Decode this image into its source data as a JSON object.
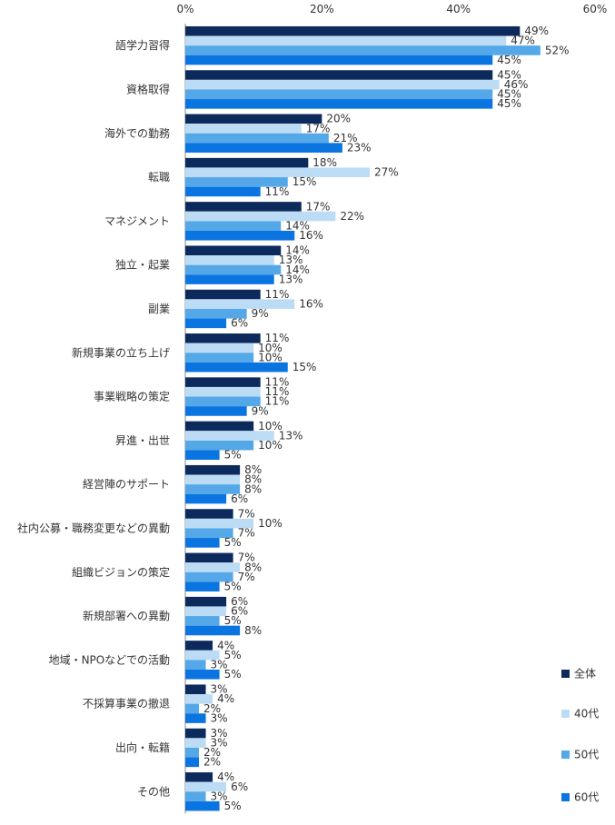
{
  "chart_data": {
    "type": "bar",
    "orientation": "horizontal",
    "xlim": [
      0,
      60
    ],
    "xticks": [
      "0%",
      "20%",
      "40%",
      "60%"
    ],
    "categories": [
      "語学力習得",
      "資格取得",
      "海外での勤務",
      "転職",
      "マネジメント",
      "独立・起業",
      "副業",
      "新規事業の立ち上げ",
      "事業戦略の策定",
      "昇進・出世",
      "経営陣のサポート",
      "社内公募・職務変更などの異動",
      "組織ビジョンの策定",
      "新規部署への異動",
      "地域・NPOなどでの活動",
      "不採算事業の撤退",
      "出向・転籍",
      "その他"
    ],
    "series": [
      {
        "name": "全体",
        "color": "#0d2a5c",
        "values": [
          49,
          45,
          20,
          18,
          17,
          14,
          11,
          11,
          11,
          10,
          8,
          7,
          7,
          6,
          4,
          3,
          3,
          4
        ]
      },
      {
        "name": "40代",
        "color": "#bcdcf5",
        "values": [
          47,
          46,
          17,
          27,
          22,
          13,
          16,
          10,
          11,
          13,
          8,
          10,
          8,
          6,
          5,
          4,
          3,
          6
        ]
      },
      {
        "name": "50代",
        "color": "#55a8e8",
        "values": [
          52,
          45,
          21,
          15,
          14,
          14,
          9,
          10,
          11,
          10,
          8,
          7,
          7,
          5,
          3,
          2,
          2,
          3
        ]
      },
      {
        "name": "60代",
        "color": "#0a74e0",
        "values": [
          45,
          45,
          23,
          11,
          16,
          13,
          6,
          15,
          9,
          5,
          6,
          5,
          5,
          8,
          5,
          3,
          2,
          5
        ]
      }
    ],
    "value_suffix": "%",
    "legend_position": "right-bottom"
  }
}
